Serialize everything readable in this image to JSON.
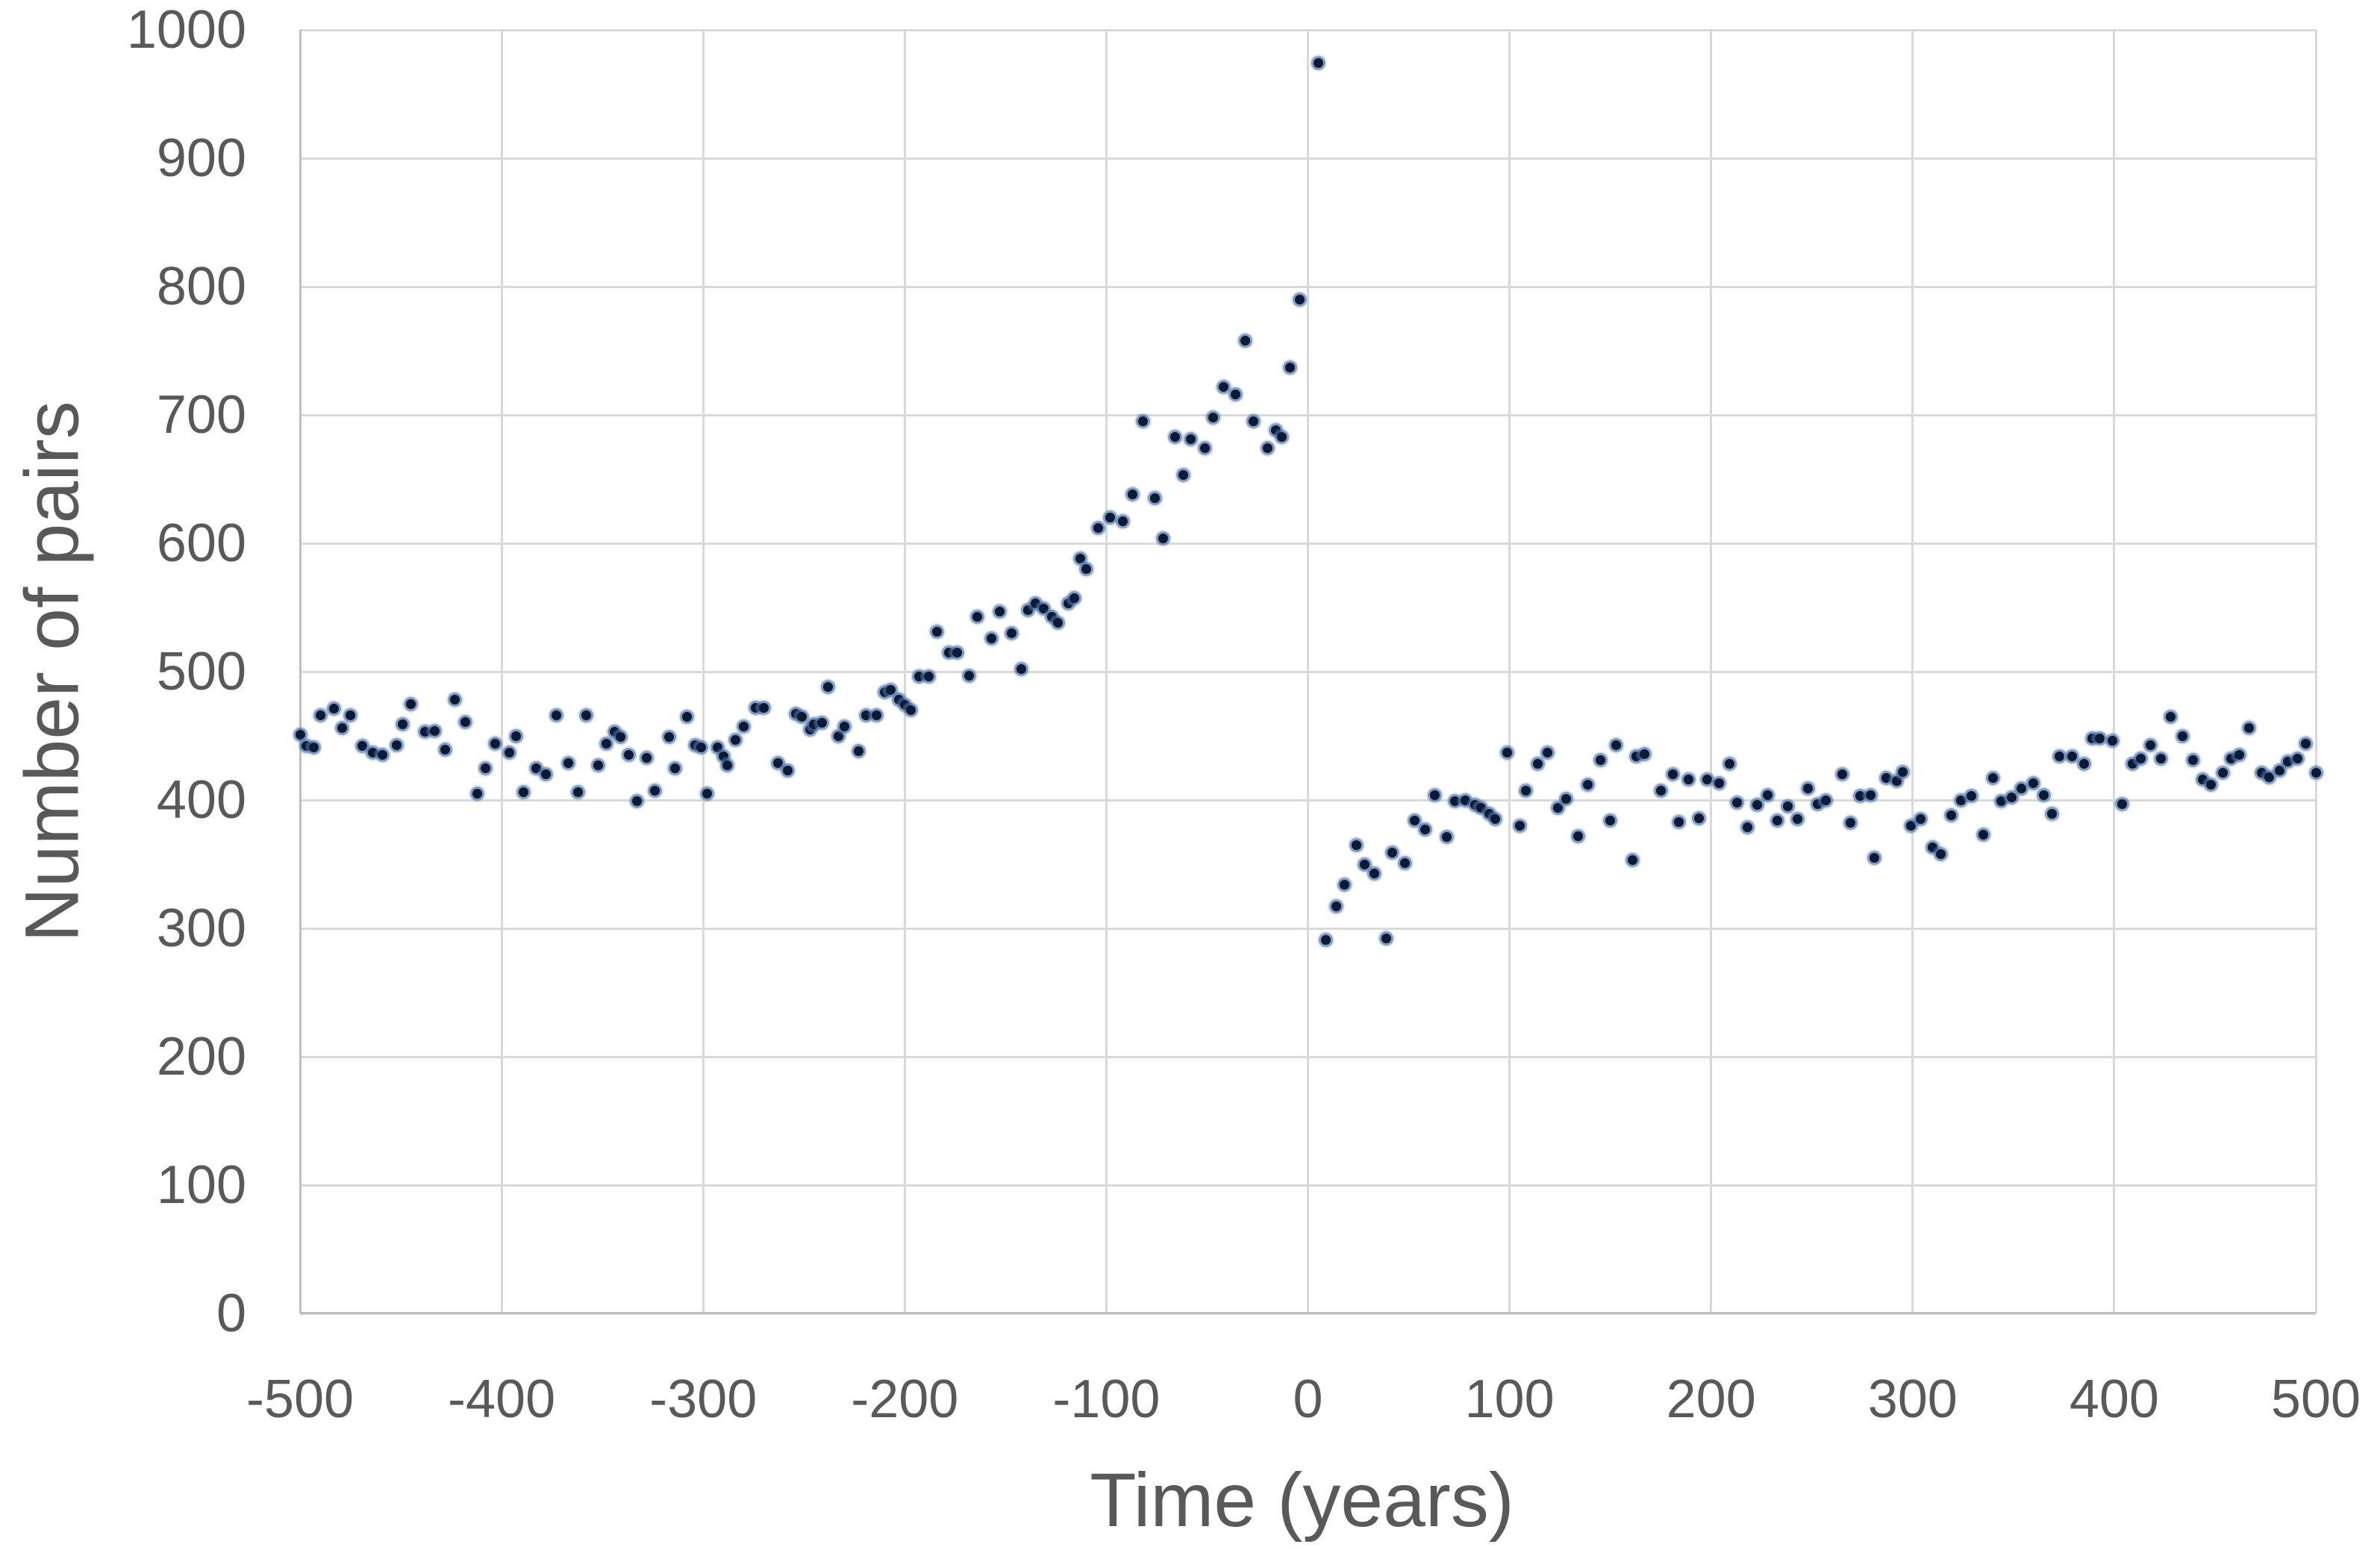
{
  "chart_data": {
    "type": "scatter",
    "title": "",
    "xlabel": "Time (years)",
    "ylabel": "Number of pairs",
    "xlim": [
      -500,
      500
    ],
    "ylim": [
      0,
      1000
    ],
    "xticks": [
      "-500",
      "-400",
      "-300",
      "-200",
      "-100",
      "0",
      "100",
      "200",
      "300",
      "400",
      "500"
    ],
    "yticks": [
      "0",
      "100",
      "200",
      "300",
      "400",
      "500",
      "600",
      "700",
      "800",
      "900",
      "1000"
    ],
    "grid": true,
    "legend": "none",
    "colors": {
      "marker_core": "#0c1a33",
      "marker_halo_inner": "rgba(56,96,158,0.55)",
      "marker_halo_outer": "rgba(132,162,205,0.28)",
      "grid_color": "#d9d9d9",
      "axis_color": "#bfbfbf",
      "label_color": "#595959",
      "background": "#ffffff"
    },
    "points": [
      [
        -500,
        451
      ],
      [
        -497,
        442
      ],
      [
        -493,
        441
      ],
      [
        -490,
        466
      ],
      [
        -483,
        471
      ],
      [
        -479,
        456
      ],
      [
        -475,
        466
      ],
      [
        -469,
        442
      ],
      [
        -464,
        437
      ],
      [
        -459,
        435
      ],
      [
        -452,
        443
      ],
      [
        -449,
        459
      ],
      [
        -445,
        475
      ],
      [
        -438,
        453
      ],
      [
        -433,
        454
      ],
      [
        -428,
        439
      ],
      [
        -423,
        478
      ],
      [
        -418,
        461
      ],
      [
        -412,
        405
      ],
      [
        -408,
        425
      ],
      [
        -403,
        444
      ],
      [
        -396,
        437
      ],
      [
        -393,
        450
      ],
      [
        -389,
        406
      ],
      [
        -383,
        425
      ],
      [
        -378,
        420
      ],
      [
        -373,
        466
      ],
      [
        -367,
        429
      ],
      [
        -362,
        406
      ],
      [
        -358,
        466
      ],
      [
        -352,
        427
      ],
      [
        -348,
        444
      ],
      [
        -344,
        453
      ],
      [
        -341,
        449
      ],
      [
        -337,
        435
      ],
      [
        -333,
        399
      ],
      [
        -328,
        433
      ],
      [
        -324,
        407
      ],
      [
        -317,
        449
      ],
      [
        -314,
        425
      ],
      [
        -308,
        465
      ],
      [
        -304,
        443
      ],
      [
        -301,
        441
      ],
      [
        -298,
        405
      ],
      [
        -293,
        441
      ],
      [
        -290,
        434
      ],
      [
        -288,
        427
      ],
      [
        -284,
        447
      ],
      [
        -280,
        457
      ],
      [
        -274,
        472
      ],
      [
        -270,
        472
      ],
      [
        -263,
        429
      ],
      [
        -258,
        423
      ],
      [
        -254,
        467
      ],
      [
        -251,
        465
      ],
      [
        -247,
        455
      ],
      [
        -245,
        459
      ],
      [
        -241,
        460
      ],
      [
        -238,
        488
      ],
      [
        -233,
        450
      ],
      [
        -230,
        457
      ],
      [
        -223,
        438
      ],
      [
        -219,
        466
      ],
      [
        -214,
        466
      ],
      [
        -210,
        484
      ],
      [
        -207,
        486
      ],
      [
        -203,
        478
      ],
      [
        -200,
        474
      ],
      [
        -197,
        470
      ],
      [
        -193,
        496
      ],
      [
        -188,
        496
      ],
      [
        -184,
        531
      ],
      [
        -178,
        515
      ],
      [
        -174,
        515
      ],
      [
        -168,
        497
      ],
      [
        -164,
        543
      ],
      [
        -157,
        526
      ],
      [
        -153,
        547
      ],
      [
        -147,
        530
      ],
      [
        -142,
        502
      ],
      [
        -139,
        548
      ],
      [
        -135,
        553
      ],
      [
        -131,
        549
      ],
      [
        -127,
        543
      ],
      [
        -124,
        538
      ],
      [
        -119,
        553
      ],
      [
        -116,
        557
      ],
      [
        -113,
        588
      ],
      [
        -110,
        580
      ],
      [
        -104,
        612
      ],
      [
        -98,
        620
      ],
      [
        -92,
        617
      ],
      [
        -87,
        638
      ],
      [
        -82,
        695
      ],
      [
        -76,
        635
      ],
      [
        -72,
        604
      ],
      [
        -66,
        683
      ],
      [
        -62,
        653
      ],
      [
        -58,
        681
      ],
      [
        -51,
        674
      ],
      [
        -47,
        698
      ],
      [
        -42,
        722
      ],
      [
        -36,
        716
      ],
      [
        -31,
        758
      ],
      [
        -27,
        695
      ],
      [
        -20,
        674
      ],
      [
        -16,
        688
      ],
      [
        -13,
        683
      ],
      [
        -9,
        737
      ],
      [
        -4,
        790
      ],
      [
        5,
        974
      ],
      [
        9,
        291
      ],
      [
        14,
        317
      ],
      [
        18,
        334
      ],
      [
        24,
        365
      ],
      [
        28,
        350
      ],
      [
        33,
        343
      ],
      [
        39,
        292
      ],
      [
        42,
        359
      ],
      [
        48,
        351
      ],
      [
        53,
        384
      ],
      [
        58,
        377
      ],
      [
        63,
        404
      ],
      [
        69,
        371
      ],
      [
        73,
        399
      ],
      [
        78,
        400
      ],
      [
        83,
        396
      ],
      [
        86,
        394
      ],
      [
        90,
        389
      ],
      [
        93,
        385
      ],
      [
        99,
        437
      ],
      [
        105,
        380
      ],
      [
        108,
        407
      ],
      [
        114,
        428
      ],
      [
        119,
        437
      ],
      [
        124,
        394
      ],
      [
        128,
        401
      ],
      [
        134,
        372
      ],
      [
        139,
        412
      ],
      [
        145,
        431
      ],
      [
        150,
        384
      ],
      [
        153,
        443
      ],
      [
        161,
        353
      ],
      [
        163,
        434
      ],
      [
        167,
        436
      ],
      [
        175,
        407
      ],
      [
        181,
        420
      ],
      [
        184,
        383
      ],
      [
        189,
        416
      ],
      [
        194,
        386
      ],
      [
        198,
        416
      ],
      [
        204,
        413
      ],
      [
        209,
        428
      ],
      [
        213,
        398
      ],
      [
        218,
        379
      ],
      [
        223,
        396
      ],
      [
        228,
        404
      ],
      [
        233,
        384
      ],
      [
        238,
        395
      ],
      [
        243,
        385
      ],
      [
        248,
        409
      ],
      [
        253,
        397
      ],
      [
        257,
        400
      ],
      [
        265,
        420
      ],
      [
        269,
        382
      ],
      [
        274,
        403
      ],
      [
        279,
        404
      ],
      [
        281,
        355
      ],
      [
        287,
        417
      ],
      [
        292,
        415
      ],
      [
        295,
        422
      ],
      [
        299,
        380
      ],
      [
        304,
        385
      ],
      [
        310,
        363
      ],
      [
        314,
        358
      ],
      [
        319,
        388
      ],
      [
        324,
        400
      ],
      [
        329,
        403
      ],
      [
        335,
        373
      ],
      [
        340,
        417
      ],
      [
        344,
        399
      ],
      [
        349,
        402
      ],
      [
        354,
        409
      ],
      [
        360,
        413
      ],
      [
        365,
        404
      ],
      [
        369,
        389
      ],
      [
        373,
        434
      ],
      [
        379,
        434
      ],
      [
        385,
        428
      ],
      [
        389,
        448
      ],
      [
        393,
        448
      ],
      [
        399,
        446
      ],
      [
        404,
        397
      ],
      [
        409,
        428
      ],
      [
        413,
        432
      ],
      [
        418,
        443
      ],
      [
        423,
        432
      ],
      [
        428,
        465
      ],
      [
        434,
        450
      ],
      [
        439,
        431
      ],
      [
        444,
        416
      ],
      [
        448,
        412
      ],
      [
        454,
        421
      ],
      [
        458,
        432
      ],
      [
        462,
        435
      ],
      [
        467,
        456
      ],
      [
        473,
        421
      ],
      [
        477,
        418
      ],
      [
        482,
        423
      ],
      [
        486,
        430
      ],
      [
        491,
        432
      ],
      [
        495,
        444
      ],
      [
        500,
        421
      ]
    ]
  }
}
